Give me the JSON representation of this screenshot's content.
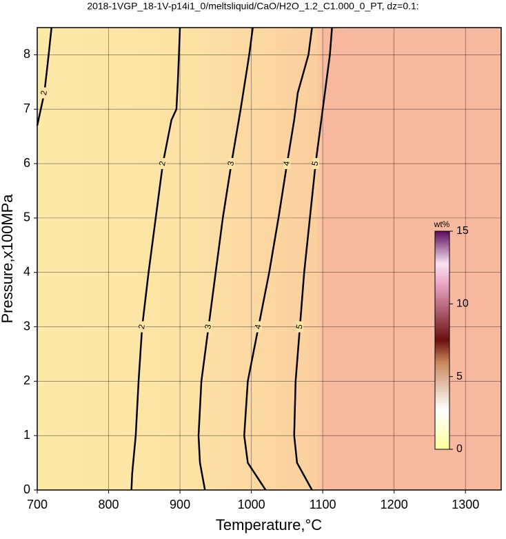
{
  "chart_data": {
    "type": "contour",
    "title": "2018-1VGP_18-1V-p14i1_0/meltsliquid/CaO/H2O_1.2_C1.000_0_PT, dz=0.1:",
    "xlabel": "Temperature,°C",
    "ylabel": "Pressure,x100MPa",
    "xlim": [
      700,
      1350
    ],
    "ylim": [
      0,
      8.5
    ],
    "xticks": [
      700,
      800,
      900,
      1000,
      1100,
      1200,
      1300
    ],
    "yticks": [
      0,
      1,
      2,
      3,
      4,
      5,
      6,
      7,
      8
    ],
    "grid": true,
    "contours": [
      {
        "level": 2,
        "x": [
          700,
          710,
          716,
          720
        ],
        "y": [
          6.7,
          7.3,
          8,
          8.5
        ]
      },
      {
        "level": 2,
        "x": [
          832,
          833,
          838,
          842,
          847,
          856,
          866,
          876,
          888,
          895,
          897,
          900
        ],
        "y": [
          0,
          0.3,
          1,
          2,
          3,
          4,
          5,
          6,
          6.8,
          7,
          7.5,
          8.5
        ]
      },
      {
        "level": 3,
        "x": [
          935,
          928,
          926,
          930,
          940,
          950,
          960,
          972,
          985,
          997,
          1002
        ],
        "y": [
          0,
          0.5,
          1,
          2,
          3,
          4,
          5,
          6,
          7,
          8,
          8.5
        ]
      },
      {
        "level": 4,
        "x": [
          1020,
          995,
          990,
          995,
          1010,
          1025,
          1038,
          1050,
          1060,
          1065,
          1080,
          1085
        ],
        "y": [
          0,
          0.5,
          1,
          2,
          3,
          4,
          5,
          6,
          6.8,
          7.3,
          8,
          8.5
        ]
      },
      {
        "level": 5,
        "x": [
          1085,
          1064,
          1060,
          1062,
          1068,
          1074,
          1082,
          1090,
          1100,
          1110,
          1113
        ],
        "y": [
          0,
          0.5,
          1,
          2,
          3,
          4,
          5,
          6,
          7,
          8,
          8.5
        ]
      }
    ],
    "colorbar": {
      "label": "wt%",
      "lim": [
        0,
        15
      ],
      "ticks": [
        0,
        5,
        10,
        15
      ]
    }
  }
}
